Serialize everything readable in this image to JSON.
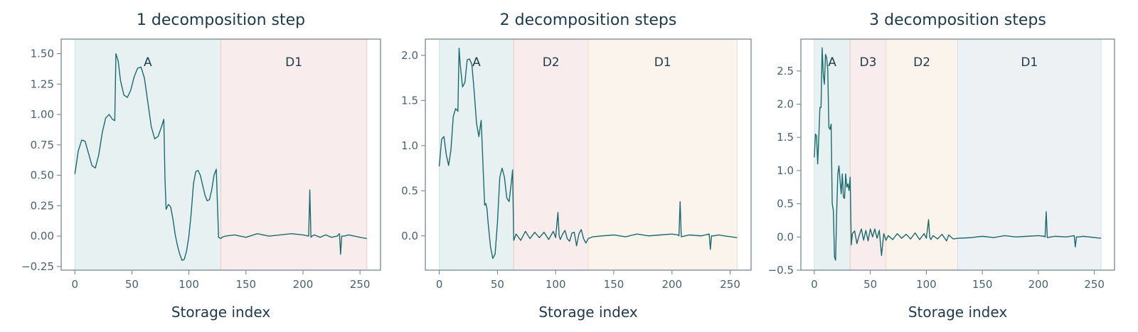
{
  "colors": {
    "line": "#1a6b6e",
    "text": "#1d3a4a",
    "tick": "#4a6270",
    "frame": "#6b7f8a",
    "region_fills": [
      "#e8f1f2",
      "#f8ecec",
      "#faf4ec",
      "#edf1f4"
    ],
    "region_borders": [
      "#cfe0e2",
      "#ecc8c8",
      "#eedcc5",
      "#d6dee5"
    ]
  },
  "chart_data": [
    {
      "type": "line",
      "title": "1 decomposition step",
      "xlabel": "Storage index",
      "ylabel": "",
      "xlim": [
        -12,
        268
      ],
      "ylim": [
        -0.28,
        1.62
      ],
      "xticks": [
        0,
        50,
        100,
        150,
        200,
        250
      ],
      "yticks": [
        -0.25,
        0.0,
        0.25,
        0.5,
        0.75,
        1.0,
        1.25,
        1.5
      ],
      "ytick_labels": [
        "−0.25",
        "0.00",
        "0.25",
        "0.50",
        "0.75",
        "1.00",
        "1.25",
        "1.50"
      ],
      "regions": [
        {
          "label": "A",
          "start": 0,
          "end": 128
        },
        {
          "label": "D1",
          "start": 128,
          "end": 256
        }
      ],
      "series": [
        {
          "x": [
            0,
            3,
            6,
            9,
            12,
            15,
            18,
            21,
            24,
            27,
            30,
            33,
            35,
            36,
            38,
            40,
            43,
            46,
            49,
            52,
            55,
            58,
            61,
            64,
            67,
            70,
            73,
            76,
            78,
            79,
            80,
            82,
            84,
            86,
            88,
            90,
            92,
            94,
            96,
            98,
            100,
            102,
            104,
            106,
            108,
            110,
            112,
            114,
            116,
            118,
            120,
            122,
            124,
            126,
            128,
            129,
            132,
            140,
            150,
            160,
            170,
            180,
            190,
            200,
            205,
            206,
            207,
            208,
            210,
            215,
            220,
            225,
            230,
            232,
            233,
            234,
            236,
            240,
            245,
            250,
            256
          ],
          "y": [
            0.51,
            0.7,
            0.79,
            0.78,
            0.68,
            0.58,
            0.56,
            0.67,
            0.85,
            0.97,
            1.0,
            0.96,
            0.95,
            1.5,
            1.44,
            1.28,
            1.16,
            1.14,
            1.2,
            1.31,
            1.38,
            1.39,
            1.3,
            1.1,
            0.9,
            0.8,
            0.82,
            0.9,
            0.96,
            0.48,
            0.22,
            0.26,
            0.24,
            0.14,
            0.01,
            -0.08,
            -0.15,
            -0.2,
            -0.19,
            -0.12,
            0.0,
            0.19,
            0.43,
            0.53,
            0.54,
            0.5,
            0.42,
            0.34,
            0.29,
            0.3,
            0.38,
            0.5,
            0.55,
            -0.01,
            -0.02,
            -0.01,
            0.0,
            0.01,
            -0.01,
            0.02,
            0.0,
            0.01,
            0.02,
            0.01,
            0.0,
            0.38,
            -0.01,
            0.0,
            0.01,
            -0.01,
            0.01,
            -0.01,
            0.0,
            0.02,
            -0.15,
            0.0,
            0.0,
            0.01,
            0.0,
            -0.01,
            -0.02
          ]
        }
      ]
    },
    {
      "type": "line",
      "title": "2 decomposition steps",
      "xlabel": "Storage index",
      "ylabel": "",
      "xlim": [
        -12,
        268
      ],
      "ylim": [
        -0.38,
        2.18
      ],
      "xticks": [
        0,
        50,
        100,
        150,
        200,
        250
      ],
      "yticks": [
        0.0,
        0.5,
        1.0,
        1.5,
        2.0
      ],
      "ytick_labels": [
        "0.0",
        "0.5",
        "1.0",
        "1.5",
        "2.0"
      ],
      "regions": [
        {
          "label": "A",
          "start": 0,
          "end": 64
        },
        {
          "label": "D2",
          "start": 64,
          "end": 128
        },
        {
          "label": "D1",
          "start": 128,
          "end": 256
        }
      ],
      "series": [
        {
          "x": [
            0,
            2,
            4,
            6,
            8,
            10,
            12,
            14,
            16,
            17,
            18,
            20,
            22,
            24,
            26,
            28,
            30,
            32,
            34,
            36,
            38,
            39,
            40,
            41,
            42,
            44,
            46,
            48,
            50,
            52,
            54,
            56,
            58,
            60,
            62,
            63,
            64,
            66,
            70,
            74,
            78,
            82,
            86,
            90,
            94,
            98,
            100,
            102,
            103,
            104,
            106,
            108,
            110,
            112,
            114,
            116,
            118,
            120,
            122,
            124,
            126,
            128,
            132,
            140,
            150,
            160,
            170,
            180,
            190,
            200,
            205,
            206,
            207,
            208,
            215,
            225,
            232,
            233,
            234,
            236,
            240,
            245,
            256
          ],
          "y": [
            0.77,
            1.07,
            1.1,
            0.9,
            0.78,
            0.95,
            1.32,
            1.41,
            1.38,
            2.08,
            1.9,
            1.65,
            1.7,
            1.95,
            1.96,
            1.9,
            1.6,
            1.25,
            1.1,
            1.28,
            0.65,
            0.34,
            0.36,
            0.3,
            0.14,
            -0.12,
            -0.25,
            -0.2,
            0.15,
            0.65,
            0.75,
            0.65,
            0.42,
            0.38,
            0.6,
            0.73,
            -0.05,
            0.02,
            -0.05,
            0.05,
            -0.03,
            0.04,
            -0.02,
            0.04,
            -0.04,
            0.05,
            -0.02,
            0.26,
            0.0,
            -0.04,
            0.02,
            0.06,
            -0.03,
            -0.06,
            0.03,
            0.04,
            -0.11,
            0.02,
            0.07,
            -0.03,
            -0.08,
            -0.03,
            -0.01,
            0.0,
            0.01,
            -0.01,
            0.02,
            0.0,
            0.01,
            0.02,
            0.01,
            0.0,
            0.38,
            -0.01,
            0.01,
            0.0,
            0.02,
            -0.15,
            0.0,
            0.0,
            0.01,
            0.0,
            -0.02
          ]
        }
      ]
    },
    {
      "type": "line",
      "title": "3 decomposition steps",
      "xlabel": "Storage index",
      "ylabel": "",
      "xlim": [
        -12,
        268
      ],
      "ylim": [
        -0.5,
        2.98
      ],
      "xticks": [
        0,
        50,
        100,
        150,
        200,
        250
      ],
      "yticks": [
        -0.5,
        0.0,
        0.5,
        1.0,
        1.5,
        2.0,
        2.5
      ],
      "ytick_labels": [
        "−0.5",
        "0.0",
        "0.5",
        "1.0",
        "1.5",
        "2.0",
        "2.5"
      ],
      "regions": [
        {
          "label": "A",
          "start": 0,
          "end": 32
        },
        {
          "label": "D3",
          "start": 32,
          "end": 64
        },
        {
          "label": "D2",
          "start": 64,
          "end": 128
        },
        {
          "label": "D1",
          "start": 128,
          "end": 256
        }
      ],
      "series": [
        {
          "x": [
            0,
            1,
            2,
            3,
            4,
            5,
            6,
            7,
            8,
            9,
            10,
            11,
            12,
            13,
            14,
            15,
            16,
            17,
            18,
            19,
            20,
            21,
            22,
            23,
            24,
            25,
            26,
            27,
            28,
            29,
            30,
            31,
            32,
            33,
            34,
            36,
            38,
            40,
            42,
            44,
            46,
            48,
            50,
            52,
            54,
            56,
            58,
            60,
            62,
            64,
            66,
            70,
            74,
            78,
            82,
            86,
            90,
            94,
            98,
            100,
            102,
            103,
            104,
            106,
            110,
            114,
            118,
            120,
            124,
            128,
            140,
            150,
            160,
            170,
            180,
            190,
            200,
            205,
            206,
            207,
            208,
            215,
            225,
            232,
            233,
            234,
            236,
            240,
            256
          ],
          "y": [
            1.2,
            1.55,
            1.52,
            1.1,
            1.5,
            1.95,
            1.95,
            2.85,
            2.45,
            2.3,
            2.75,
            2.7,
            2.52,
            1.65,
            1.62,
            1.7,
            0.5,
            0.4,
            -0.3,
            -0.35,
            0.4,
            0.95,
            1.07,
            0.85,
            0.65,
            0.95,
            0.6,
            0.58,
            0.95,
            0.75,
            0.8,
            0.7,
            0.9,
            -0.12,
            0.05,
            0.09,
            -0.1,
            0.02,
            0.12,
            -0.05,
            0.1,
            -0.06,
            0.12,
            0.0,
            0.12,
            -0.02,
            0.1,
            -0.28,
            0.05,
            -0.05,
            0.02,
            -0.04,
            0.05,
            -0.02,
            0.04,
            -0.03,
            0.06,
            -0.04,
            0.05,
            -0.02,
            0.26,
            0.0,
            -0.04,
            0.02,
            -0.03,
            0.04,
            -0.06,
            0.03,
            -0.03,
            -0.02,
            -0.01,
            0.01,
            -0.01,
            0.02,
            0.0,
            0.01,
            0.02,
            0.01,
            0.0,
            0.38,
            -0.01,
            0.01,
            0.0,
            0.02,
            -0.15,
            0.0,
            0.0,
            0.01,
            -0.02
          ]
        }
      ]
    }
  ]
}
